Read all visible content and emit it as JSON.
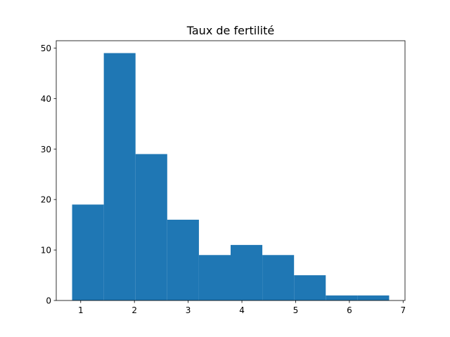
{
  "chart_data": {
    "type": "bar",
    "subtype": "histogram",
    "title": "Taux de fertilité",
    "xlabel": "",
    "ylabel": "",
    "bins": [
      {
        "x0": 0.84,
        "x1": 1.43,
        "count": 19
      },
      {
        "x0": 1.43,
        "x1": 2.02,
        "count": 49
      },
      {
        "x0": 2.02,
        "x1": 2.61,
        "count": 29
      },
      {
        "x0": 2.61,
        "x1": 3.2,
        "count": 16
      },
      {
        "x0": 3.2,
        "x1": 3.79,
        "count": 9
      },
      {
        "x0": 3.79,
        "x1": 4.38,
        "count": 11
      },
      {
        "x0": 4.38,
        "x1": 4.97,
        "count": 9
      },
      {
        "x0": 4.97,
        "x1": 5.56,
        "count": 5
      },
      {
        "x0": 5.56,
        "x1": 6.15,
        "count": 1
      },
      {
        "x0": 6.15,
        "x1": 6.74,
        "count": 1
      }
    ],
    "xlim": [
      0.545,
      7.035
    ],
    "ylim": [
      0,
      51.45
    ],
    "xticks": [
      "1",
      "2",
      "3",
      "4",
      "5",
      "6",
      "7"
    ],
    "yticks": [
      "0",
      "10",
      "20",
      "30",
      "40",
      "50"
    ],
    "grid": false,
    "color": "#1f77b4"
  }
}
